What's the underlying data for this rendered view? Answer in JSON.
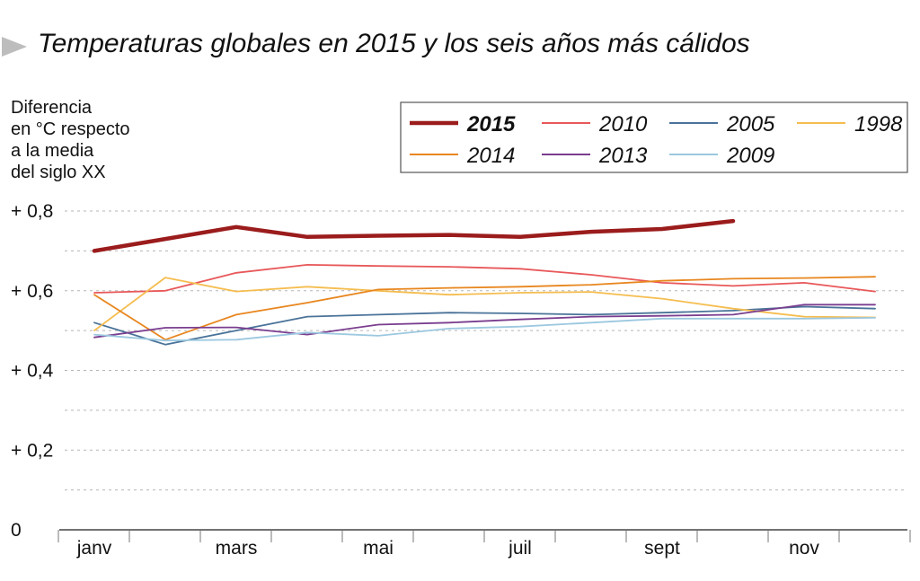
{
  "title": "Temperaturas globales en 2015 y los seis años más cálidos",
  "ylabel_lines": [
    "Diferencia",
    "en °C respecto",
    "a la media",
    "del siglo XX"
  ],
  "colors": {
    "2015": "#9b1c1c",
    "2010": "#e8585a",
    "2005": "#4a7399",
    "1998": "#f5bd4f",
    "2014": "#e8861e",
    "2013": "#7a3d8f",
    "2009": "#9cc8e0"
  },
  "chart_data": {
    "type": "line",
    "title": "Temperaturas globales en 2015 y los seis años más cálidos",
    "ylabel": "Diferencia en °C respecto a la media del siglo XX",
    "ylim": [
      0,
      0.8
    ],
    "yticks": [
      0,
      0.2,
      0.4,
      0.6,
      0.8
    ],
    "ytick_labels": [
      "0",
      "+ 0,2",
      "+ 0,4",
      "+ 0,6",
      "+ 0,8"
    ],
    "x": [
      1,
      2,
      3,
      4,
      5,
      6,
      7,
      8,
      9,
      10,
      11,
      12
    ],
    "xtick_positions": [
      1,
      3,
      5,
      7,
      9,
      11
    ],
    "xtick_labels": [
      "janv",
      "mars",
      "mai",
      "juil",
      "sept",
      "nov"
    ],
    "grid": "horizontal dashed",
    "legend_position": "top-right",
    "series": [
      {
        "name": "2015",
        "values": [
          0.7,
          0.73,
          0.76,
          0.735,
          0.738,
          0.74,
          0.735,
          0.748,
          0.755,
          0.775,
          null,
          null
        ]
      },
      {
        "name": "2010",
        "values": [
          0.595,
          0.6,
          0.645,
          0.665,
          0.662,
          0.66,
          0.655,
          0.64,
          0.62,
          0.612,
          0.62,
          0.598
        ]
      },
      {
        "name": "2005",
        "values": [
          0.52,
          0.465,
          0.5,
          0.535,
          0.54,
          0.545,
          0.543,
          0.54,
          0.545,
          0.55,
          0.56,
          0.555
        ]
      },
      {
        "name": "1998",
        "values": [
          0.5,
          0.633,
          0.598,
          0.61,
          0.6,
          0.59,
          0.595,
          0.597,
          0.58,
          0.555,
          0.535,
          0.533
        ]
      },
      {
        "name": "2014",
        "values": [
          0.59,
          0.477,
          0.54,
          0.57,
          0.603,
          0.607,
          0.61,
          0.615,
          0.625,
          0.63,
          0.632,
          0.635
        ]
      },
      {
        "name": "2013",
        "values": [
          0.483,
          0.507,
          0.508,
          0.49,
          0.515,
          0.52,
          0.528,
          0.535,
          0.537,
          0.54,
          0.565,
          0.565
        ]
      },
      {
        "name": "2009",
        "values": [
          0.49,
          0.475,
          0.477,
          0.495,
          0.487,
          0.505,
          0.51,
          0.52,
          0.53,
          0.53,
          0.53,
          0.532
        ]
      }
    ],
    "legend_order": [
      "2015",
      "2010",
      "2005",
      "1998",
      "2014",
      "2013",
      "2009"
    ]
  }
}
